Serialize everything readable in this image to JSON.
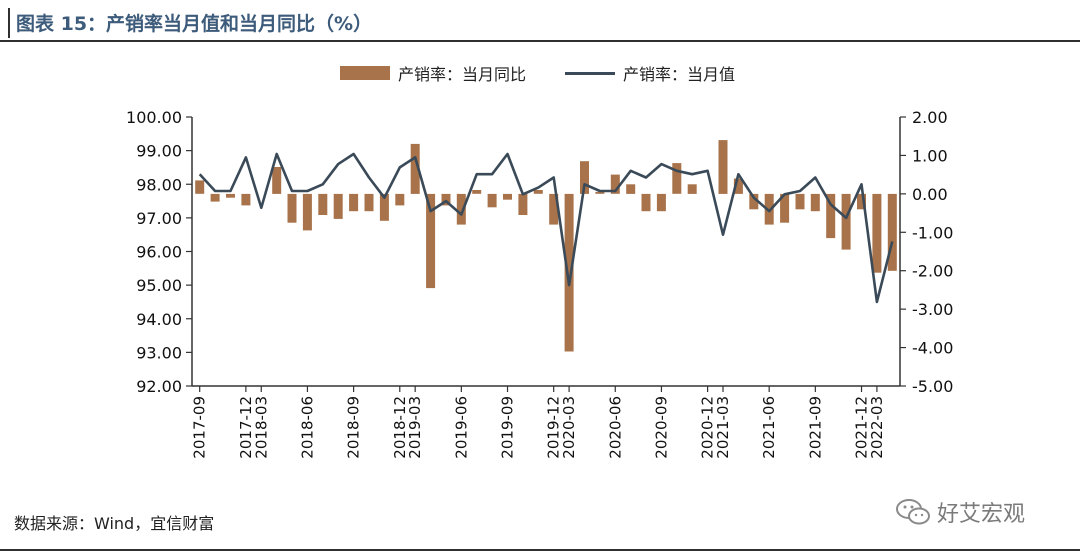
{
  "title": "图表 15：产销率当月值和当月同比（%）",
  "source": "数据来源：Wind，宜信财富",
  "watermark": "好艾宏观",
  "colors": {
    "bar": "#a8734a",
    "line": "#3b4a58",
    "title": "#3d5b7a",
    "axis": "#333333"
  },
  "chart_data": {
    "type": "bar+line",
    "legend": [
      "产销率：当月同比",
      "产销率：当月值"
    ],
    "legend_placement": "top-center",
    "grid": false,
    "y_left": {
      "min": 92.0,
      "max": 100.0,
      "step": 1.0,
      "ticks": [
        "100.00",
        "99.00",
        "98.00",
        "97.00",
        "96.00",
        "95.00",
        "94.00",
        "93.00",
        "92.00"
      ]
    },
    "y_right": {
      "min": -5.0,
      "max": 2.0,
      "step": 1.0,
      "ticks": [
        "2.00",
        "1.00",
        "0.00",
        "-1.00",
        "-2.00",
        "-3.00",
        "-4.00",
        "-5.00"
      ]
    },
    "x_tick_labels": [
      "2017-09",
      "2017-12",
      "2018-03",
      "2018-06",
      "2018-09",
      "2018-12",
      "2019-03",
      "2019-06",
      "2019-09",
      "2019-12",
      "2020-03",
      "2020-06",
      "2020-09",
      "2020-12",
      "2021-03",
      "2021-06",
      "2021-09",
      "2021-12",
      "2022-03"
    ],
    "periods": [
      "2017-09",
      "2017-10",
      "2017-11",
      "2017-12",
      "2018-03",
      "2018-04",
      "2018-05",
      "2018-06",
      "2018-07",
      "2018-08",
      "2018-09",
      "2018-10",
      "2018-11",
      "2018-12",
      "2019-03",
      "2019-04",
      "2019-05",
      "2019-06",
      "2019-07",
      "2019-08",
      "2019-09",
      "2019-10",
      "2019-11",
      "2019-12",
      "2020-03",
      "2020-04",
      "2020-05",
      "2020-06",
      "2020-07",
      "2020-08",
      "2020-09",
      "2020-10",
      "2020-11",
      "2020-12",
      "2021-03",
      "2021-04",
      "2021-05",
      "2021-06",
      "2021-07",
      "2021-08",
      "2021-09",
      "2021-10",
      "2021-11",
      "2021-12",
      "2022-03",
      "2022-04"
    ],
    "series": [
      {
        "name": "产销率：当月同比",
        "axis": "right",
        "type": "bar",
        "values": [
          0.35,
          -0.2,
          -0.1,
          -0.3,
          null,
          0.7,
          -0.75,
          -0.95,
          -0.55,
          -0.65,
          -0.45,
          -0.45,
          -0.7,
          -0.3,
          1.3,
          -2.45,
          -0.3,
          -0.8,
          0.1,
          -0.35,
          -0.15,
          -0.55,
          0.1,
          -0.8,
          -4.1,
          0.85,
          0.05,
          0.5,
          0.25,
          -0.45,
          -0.45,
          0.8,
          0.25,
          null,
          1.4,
          0.4,
          -0.4,
          -0.8,
          -0.75,
          -0.4,
          -0.45,
          -1.15,
          -1.45,
          -0.4,
          -2.05,
          -2.0
        ]
      },
      {
        "name": "产销率：当月值",
        "axis": "left",
        "type": "line",
        "values": [
          98.3,
          97.8,
          97.8,
          98.8,
          97.3,
          98.9,
          97.8,
          97.8,
          98.0,
          98.6,
          98.9,
          98.2,
          97.6,
          98.5,
          98.8,
          97.2,
          97.5,
          97.1,
          98.3,
          98.3,
          98.9,
          97.7,
          97.9,
          98.2,
          95.0,
          98.0,
          97.8,
          97.8,
          98.4,
          98.2,
          98.6,
          98.4,
          98.3,
          98.4,
          96.5,
          98.3,
          97.6,
          97.2,
          97.7,
          97.8,
          98.2,
          97.4,
          97.0,
          98.0,
          94.5,
          96.3
        ]
      }
    ]
  }
}
